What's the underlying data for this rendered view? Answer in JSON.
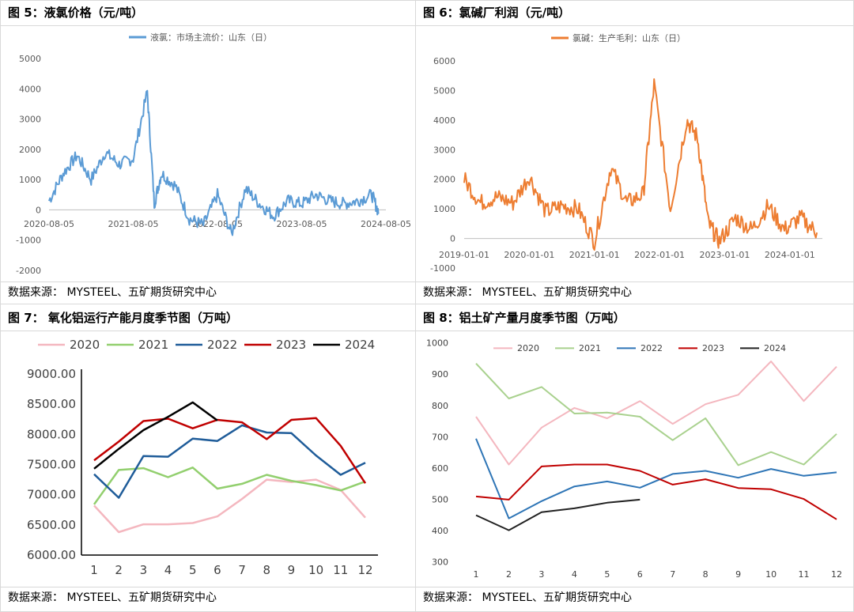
{
  "source_text": "数据来源： MYSTEEL、五矿期货研究中心",
  "panels": [
    {
      "title": "图 5：液氯价格（元/吨）"
    },
    {
      "title": "图 6：氯碱厂利润（元/吨）"
    },
    {
      "title": "图 7： 氧化铝运行产能月度季节图（万吨）"
    },
    {
      "title": "图 8：铝土矿产量月度季节图（万吨）"
    }
  ],
  "chart_data": [
    {
      "type": "line",
      "title": "液氯价格（元/吨）",
      "color": "#5b9bd5",
      "series": [
        {
          "name": "液氯：市场主流价：山东（日）",
          "x": [
            "2020-08",
            "2020-10",
            "2020-12",
            "2021-02",
            "2021-04",
            "2021-06",
            "2021-08",
            "2021-10",
            "2021-11",
            "2021-12",
            "2022-02",
            "2022-04",
            "2022-06",
            "2022-08",
            "2022-10",
            "2022-12",
            "2023-02",
            "2023-04",
            "2023-06",
            "2023-08",
            "2023-10",
            "2023-12",
            "2024-02",
            "2024-04",
            "2024-06",
            "2024-07"
          ],
          "values": [
            300,
            1200,
            1800,
            1000,
            1900,
            1500,
            1700,
            3900,
            200,
            1200,
            800,
            -300,
            -500,
            500,
            -800,
            700,
            200,
            -200,
            300,
            200,
            500,
            300,
            200,
            300,
            500,
            -100
          ]
        }
      ],
      "x_ticks": [
        "2020-08-05",
        "2021-08-05",
        "2022-08-05",
        "2023-08-05",
        "2024-08-05"
      ],
      "y_ticks": [
        "5000",
        "4000",
        "3000",
        "2000",
        "1000",
        "0",
        "-1000",
        "-2000"
      ],
      "ylim": [
        -2000,
        5000
      ]
    },
    {
      "type": "line",
      "title": "氯碱厂利润（元/吨）",
      "color": "#ed7d31",
      "series": [
        {
          "name": "氯碱：生产毛利：山东（日）",
          "x": [
            "2019-01",
            "2019-04",
            "2019-07",
            "2019-10",
            "2020-01",
            "2020-04",
            "2020-07",
            "2020-10",
            "2021-01",
            "2021-04",
            "2021-07",
            "2021-10",
            "2021-12",
            "2022-03",
            "2022-06",
            "2022-08",
            "2022-10",
            "2022-12",
            "2023-03",
            "2023-06",
            "2023-09",
            "2023-12",
            "2024-03",
            "2024-06"
          ],
          "values": [
            2000,
            1200,
            1400,
            1200,
            2100,
            900,
            1100,
            1000,
            -100,
            2400,
            1200,
            1500,
            5200,
            1000,
            4000,
            3400,
            500,
            -100,
            700,
            300,
            1100,
            300,
            700,
            200
          ]
        }
      ],
      "x_ticks": [
        "2019-01-01",
        "2020-01-01",
        "2021-01-01",
        "2022-01-01",
        "2023-01-01",
        "2024-01-01"
      ],
      "y_ticks": [
        "6000",
        "5000",
        "4000",
        "3000",
        "2000",
        "1000",
        "0",
        "-1000"
      ],
      "ylim": [
        -1000,
        6000
      ]
    },
    {
      "type": "line",
      "title": "氧化铝运行产能月度季节图（万吨）",
      "categories": [
        "1",
        "2",
        "3",
        "4",
        "5",
        "6",
        "7",
        "8",
        "9",
        "10",
        "11",
        "12"
      ],
      "y_ticks": [
        "9000.00",
        "8500.00",
        "8000.00",
        "7500.00",
        "7000.00",
        "6500.00",
        "6000.00"
      ],
      "ylim": [
        6000,
        9000
      ],
      "series": [
        {
          "name": "2020",
          "color": "#f4b7bf",
          "values": [
            6820,
            6380,
            6510,
            6510,
            6530,
            6640,
            6930,
            7250,
            7210,
            7250,
            7080,
            6620
          ]
        },
        {
          "name": "2021",
          "color": "#92cf6e",
          "values": [
            6840,
            7410,
            7440,
            7290,
            7450,
            7100,
            7180,
            7330,
            7230,
            7160,
            7070,
            7220
          ]
        },
        {
          "name": "2022",
          "color": "#1f5c99",
          "values": [
            7340,
            6950,
            7640,
            7630,
            7930,
            7890,
            8150,
            8030,
            8020,
            7650,
            7330,
            7530
          ]
        },
        {
          "name": "2023",
          "color": "#c00000",
          "values": [
            7570,
            7880,
            8220,
            8260,
            8100,
            8240,
            8200,
            7920,
            8240,
            8270,
            7810,
            7190
          ]
        },
        {
          "name": "2024",
          "color": "#000000",
          "values": [
            7430,
            7760,
            8070,
            8290,
            8530,
            8230,
            null,
            null,
            null,
            null,
            null,
            null
          ]
        }
      ]
    },
    {
      "type": "line",
      "title": "铝土矿产量月度季节图（万吨）",
      "categories": [
        "1",
        "2",
        "3",
        "4",
        "5",
        "6",
        "7",
        "8",
        "9",
        "10",
        "11",
        "12"
      ],
      "y_ticks": [
        "1000",
        "900",
        "800",
        "700",
        "600",
        "500",
        "400",
        "300"
      ],
      "ylim": [
        300,
        1000
      ],
      "series": [
        {
          "name": "2020",
          "color": "#f4b7bf",
          "values": [
            765,
            612,
            730,
            793,
            760,
            815,
            742,
            805,
            835,
            942,
            815,
            925
          ]
        },
        {
          "name": "2021",
          "color": "#a9d18e",
          "values": [
            935,
            823,
            860,
            775,
            778,
            765,
            690,
            760,
            610,
            652,
            612,
            710
          ]
        },
        {
          "name": "2022",
          "color": "#2e75b6",
          "values": [
            695,
            440,
            495,
            542,
            558,
            538,
            582,
            592,
            570,
            598,
            576,
            587
          ]
        },
        {
          "name": "2023",
          "color": "#c00000",
          "values": [
            510,
            500,
            606,
            612,
            612,
            592,
            548,
            565,
            537,
            533,
            502,
            437
          ]
        },
        {
          "name": "2024",
          "color": "#222222",
          "values": [
            450,
            402,
            460,
            472,
            490,
            500,
            null,
            null,
            null,
            null,
            null,
            null
          ]
        }
      ]
    }
  ]
}
